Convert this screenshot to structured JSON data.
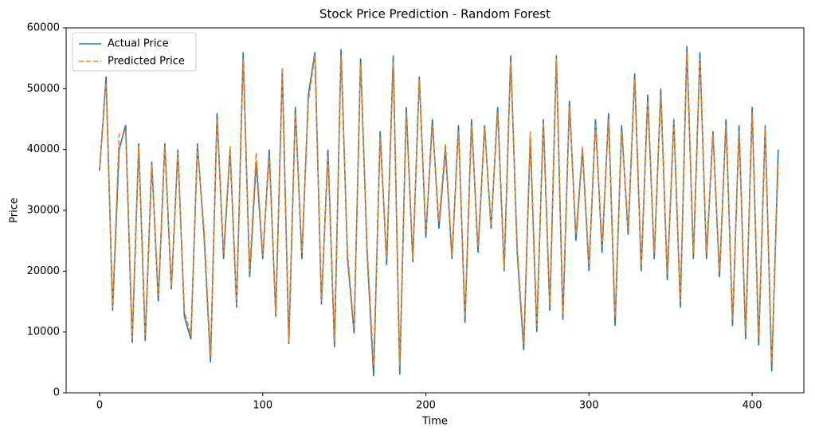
{
  "chart_data": {
    "type": "line",
    "title": "Stock Price Prediction - Random Forest",
    "x_label": "Time",
    "y_label": "Price",
    "x": [
      0,
      4,
      8,
      12,
      16,
      20,
      24,
      28,
      32,
      36,
      40,
      44,
      48,
      52,
      56,
      60,
      64,
      68,
      72,
      76,
      80,
      84,
      88,
      92,
      96,
      100,
      104,
      108,
      112,
      116,
      120,
      124,
      128,
      132,
      136,
      140,
      144,
      148,
      152,
      156,
      160,
      164,
      168,
      172,
      176,
      180,
      184,
      188,
      192,
      196,
      200,
      204,
      208,
      212,
      216,
      220,
      224,
      228,
      232,
      236,
      240,
      244,
      248,
      252,
      256,
      260,
      264,
      268,
      272,
      276,
      280,
      284,
      288,
      292,
      296,
      300,
      304,
      308,
      312,
      316,
      320,
      324,
      328,
      332,
      336,
      340,
      344,
      348,
      352,
      356,
      360,
      364,
      368,
      372,
      376,
      380,
      384,
      388,
      392,
      396,
      400,
      404,
      408,
      412,
      416
    ],
    "series": [
      {
        "name": "Actual Price",
        "color": "#1f77b4",
        "dash": false,
        "values": [
          36500,
          52000,
          13500,
          40000,
          44000,
          8200,
          41000,
          8500,
          38000,
          15000,
          41000,
          17000,
          40000,
          12500,
          8800,
          41000,
          26000,
          5000,
          46000,
          22000,
          40000,
          14000,
          56000,
          19000,
          38000,
          22000,
          40000,
          12500,
          53000,
          8000,
          47000,
          22000,
          49000,
          56000,
          14500,
          40000,
          7500,
          56500,
          22000,
          9800,
          55000,
          23000,
          2700,
          43000,
          21000,
          55500,
          3000,
          47000,
          21500,
          52000,
          25500,
          45000,
          27000,
          40000,
          22000,
          44000,
          11500,
          45000,
          23000,
          44000,
          27000,
          47000,
          20000,
          55500,
          23000,
          7000,
          42000,
          10000,
          45000,
          13500,
          55500,
          12000,
          48000,
          25000,
          40000,
          20000,
          45000,
          23000,
          46000,
          11000,
          44000,
          26000,
          52500,
          20000,
          49000,
          22000,
          50000,
          18500,
          45000,
          14000,
          57000,
          22000,
          56000,
          22000,
          43000,
          19000,
          45000,
          11000,
          44000,
          8800,
          47000,
          7800,
          44000,
          3500,
          40000
        ]
      },
      {
        "name": "Predicted Price",
        "color": "#ff7f0e",
        "dash": true,
        "values": [
          37000,
          51000,
          14000,
          42500,
          43000,
          9000,
          40500,
          9500,
          37500,
          16000,
          40500,
          17500,
          39500,
          13500,
          9500,
          40500,
          27000,
          6000,
          45000,
          23000,
          40500,
          14500,
          55000,
          20000,
          39500,
          22500,
          39000,
          13000,
          53500,
          8500,
          46000,
          23000,
          48000,
          55500,
          15000,
          39000,
          8500,
          55500,
          23000,
          10500,
          54000,
          24000,
          4500,
          42000,
          22000,
          54500,
          4500,
          46000,
          22000,
          51500,
          26500,
          44000,
          28000,
          41000,
          22500,
          43000,
          12500,
          44000,
          24000,
          43500,
          27500,
          46000,
          20500,
          54500,
          24000,
          8000,
          43000,
          11000,
          44500,
          14500,
          55000,
          13000,
          47000,
          26000,
          40500,
          21000,
          44000,
          24000,
          45000,
          12500,
          43000,
          27000,
          51500,
          21000,
          48000,
          23000,
          49000,
          19500,
          44500,
          15000,
          56000,
          23000,
          55000,
          23000,
          42500,
          20000,
          44000,
          12000,
          43000,
          10000,
          46000,
          9000,
          43500,
          5000,
          37500
        ]
      }
    ],
    "xlim": [
      -20.5,
      431.7
    ],
    "ylim": [
      0,
      60000
    ],
    "xticks": [
      0,
      100,
      200,
      300,
      400
    ],
    "yticks": [
      0,
      10000,
      20000,
      30000,
      40000,
      50000,
      60000
    ],
    "legend": "upper left"
  }
}
